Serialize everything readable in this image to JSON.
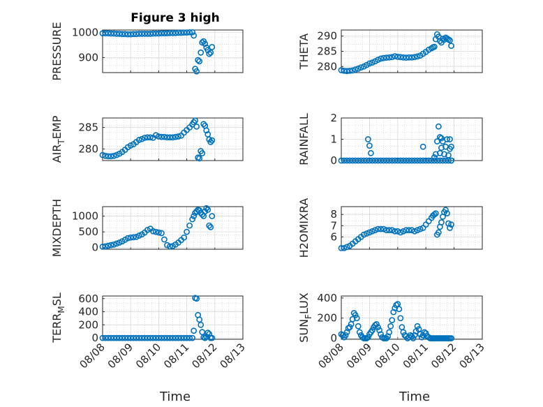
{
  "chart_data": [
    {
      "id": "pressure",
      "type": "scatter",
      "title": "Figure 3 high",
      "ylabel": "PRESSURE",
      "xlim": [
        0,
        5
      ],
      "ylim": [
        840,
        1010
      ],
      "yticks": [
        900,
        1000
      ],
      "ytick_labels": [
        "900",
        "1000"
      ],
      "xticks": [
        0,
        1,
        2,
        3,
        4,
        5
      ],
      "x": [
        0,
        0.1,
        0.2,
        0.3,
        0.4,
        0.5,
        0.6,
        0.7,
        0.8,
        0.9,
        1.0,
        1.1,
        1.2,
        1.3,
        1.4,
        1.5,
        1.6,
        1.7,
        1.8,
        1.9,
        2.0,
        2.1,
        2.2,
        2.3,
        2.4,
        2.5,
        2.6,
        2.7,
        2.8,
        2.9,
        3.0,
        3.1,
        3.2,
        3.25,
        3.3,
        3.35,
        3.4,
        3.45,
        3.5,
        3.55,
        3.6,
        3.65,
        3.7,
        3.75,
        3.8,
        3.85,
        3.9
      ],
      "y": [
        997,
        997,
        997,
        996,
        996,
        995,
        995,
        994,
        994,
        993,
        993,
        994,
        994,
        995,
        995,
        995,
        995,
        995,
        996,
        996,
        996,
        997,
        997,
        997,
        998,
        998,
        998,
        999,
        999,
        1000,
        1000,
        1001,
        1001,
        988,
        855,
        845,
        890,
        885,
        920,
        960,
        965,
        955,
        940,
        930,
        915,
        920,
        942
      ]
    },
    {
      "id": "theta",
      "type": "scatter",
      "ylabel": "THETA",
      "xlim": [
        0,
        5
      ],
      "ylim": [
        278,
        292
      ],
      "yticks": [
        280,
        285,
        290
      ],
      "ytick_labels": [
        "280",
        "285",
        "290"
      ],
      "xticks": [
        0,
        1,
        2,
        3,
        4,
        5
      ],
      "x": [
        0,
        0.1,
        0.2,
        0.3,
        0.4,
        0.5,
        0.6,
        0.7,
        0.8,
        0.9,
        1.0,
        1.1,
        1.2,
        1.3,
        1.4,
        1.5,
        1.6,
        1.7,
        1.8,
        1.9,
        2.0,
        2.1,
        2.2,
        2.3,
        2.4,
        2.5,
        2.6,
        2.7,
        2.8,
        2.9,
        3.0,
        3.1,
        3.2,
        3.25,
        3.3,
        3.35,
        3.4,
        3.45,
        3.5,
        3.55,
        3.6,
        3.65,
        3.7,
        3.75,
        3.8,
        3.85,
        3.9
      ],
      "y": [
        278.8,
        278.6,
        278.5,
        278.6,
        278.7,
        279.0,
        279.3,
        279.7,
        280.0,
        280.5,
        281.0,
        281.3,
        281.7,
        282.2,
        282.6,
        282.8,
        282.9,
        283.0,
        283.1,
        283.4,
        283.2,
        283.1,
        283.0,
        282.9,
        283.0,
        283.0,
        283.1,
        283.3,
        283.6,
        284.2,
        284.8,
        285.5,
        286.0,
        286.3,
        286.5,
        289.0,
        290.6,
        289.8,
        288.4,
        287.9,
        289.1,
        288.8,
        289.5,
        289.2,
        288.9,
        288.6,
        286.8
      ]
    },
    {
      "id": "airtemp",
      "type": "scatter",
      "ylabel": "AIR_TEMP",
      "xlim": [
        0,
        5
      ],
      "ylim": [
        277.3,
        287.2
      ],
      "yticks": [
        280,
        285
      ],
      "ytick_labels": [
        "280",
        "285"
      ],
      "xticks": [
        0,
        1,
        2,
        3,
        4,
        5
      ],
      "x": [
        0,
        0.1,
        0.2,
        0.3,
        0.4,
        0.5,
        0.6,
        0.7,
        0.8,
        0.9,
        1.0,
        1.1,
        1.2,
        1.3,
        1.4,
        1.5,
        1.6,
        1.7,
        1.8,
        1.9,
        2.0,
        2.1,
        2.2,
        2.3,
        2.4,
        2.5,
        2.6,
        2.7,
        2.8,
        2.9,
        3.0,
        3.1,
        3.2,
        3.25,
        3.3,
        3.35,
        3.4,
        3.45,
        3.5,
        3.55,
        3.6,
        3.65,
        3.7,
        3.75,
        3.8,
        3.85,
        3.9
      ],
      "y": [
        278.6,
        278.4,
        278.3,
        278.3,
        278.4,
        278.6,
        278.9,
        279.3,
        279.8,
        280.4,
        280.8,
        281.1,
        281.6,
        282.1,
        282.3,
        282.6,
        282.7,
        282.7,
        282.6,
        283.2,
        282.9,
        282.8,
        282.8,
        282.7,
        282.7,
        282.7,
        282.8,
        282.9,
        283.1,
        283.8,
        284.4,
        285.0,
        285.7,
        286.2,
        286.6,
        285.2,
        278.0,
        277.8,
        279.5,
        279.0,
        285.8,
        285.4,
        284.3,
        283.4,
        282.2,
        281.6,
        282.0
      ]
    },
    {
      "id": "rainfall",
      "type": "scatter",
      "ylabel": "RAINFALL",
      "xlim": [
        0,
        5
      ],
      "ylim": [
        0,
        2
      ],
      "yticks": [
        0,
        1,
        2
      ],
      "ytick_labels": [
        "0",
        "1",
        "2"
      ],
      "xticks": [
        0,
        1,
        2,
        3,
        4,
        5
      ],
      "x": [
        0,
        0.1,
        0.2,
        0.3,
        0.4,
        0.5,
        0.6,
        0.7,
        0.8,
        0.9,
        1.0,
        1.1,
        1.2,
        1.3,
        1.4,
        1.5,
        1.6,
        1.7,
        1.8,
        1.9,
        2.0,
        2.1,
        2.2,
        2.3,
        2.4,
        2.5,
        2.6,
        2.7,
        2.8,
        2.9,
        3.0,
        3.1,
        3.2,
        3.3,
        3.4,
        3.5,
        3.6,
        3.7,
        3.8,
        3.9,
        0.95,
        1.0,
        1.05,
        2.9,
        3.3,
        3.35,
        3.4,
        3.45,
        3.5,
        3.5,
        3.55,
        3.55,
        3.6,
        3.65,
        3.7,
        3.75,
        3.8,
        3.85,
        3.85,
        3.9,
        3.9
      ],
      "y": [
        0,
        0,
        0,
        0,
        0,
        0,
        0,
        0,
        0,
        0,
        0,
        0,
        0,
        0,
        0,
        0,
        0,
        0,
        0,
        0,
        0,
        0,
        0,
        0,
        0,
        0,
        0,
        0,
        0,
        0,
        0,
        0,
        0,
        0,
        0,
        0,
        0,
        0,
        0,
        0,
        1.0,
        0.7,
        0.35,
        0.65,
        0.15,
        0.3,
        0.9,
        1.6,
        1.1,
        0.35,
        1.05,
        0.6,
        0.9,
        0.3,
        0.65,
        1.0,
        0.25,
        0.55,
        1.0,
        0.65,
        0.0
      ]
    },
    {
      "id": "mixdepth",
      "type": "scatter",
      "ylabel": "MIXDEPTH",
      "xlim": [
        0,
        5
      ],
      "ylim": [
        -50,
        1300
      ],
      "yticks": [
        0,
        500,
        1000
      ],
      "ytick_labels": [
        "0",
        "500",
        "1000"
      ],
      "xticks": [
        0,
        1,
        2,
        3,
        4,
        5
      ],
      "x": [
        0,
        0.1,
        0.2,
        0.3,
        0.4,
        0.5,
        0.6,
        0.7,
        0.8,
        0.9,
        1.0,
        1.1,
        1.2,
        1.3,
        1.4,
        1.5,
        1.6,
        1.7,
        1.8,
        1.9,
        2.0,
        2.1,
        2.2,
        2.3,
        2.4,
        2.5,
        2.6,
        2.7,
        2.8,
        2.9,
        3.0,
        3.1,
        3.2,
        3.25,
        3.3,
        3.35,
        3.4,
        3.45,
        3.5,
        3.55,
        3.6,
        3.65,
        3.7,
        3.75,
        3.8,
        3.85,
        3.9
      ],
      "y": [
        30,
        40,
        60,
        80,
        100,
        130,
        160,
        200,
        250,
        300,
        320,
        330,
        340,
        380,
        420,
        480,
        560,
        600,
        520,
        500,
        480,
        460,
        260,
        80,
        40,
        50,
        100,
        160,
        240,
        320,
        500,
        700,
        900,
        1000,
        1100,
        1150,
        1200,
        1180,
        1100,
        1050,
        1000,
        1150,
        1250,
        1200,
        700,
        650,
        1000
      ]
    },
    {
      "id": "h2omixra",
      "type": "scatter",
      "ylabel": "H2OMIXRA",
      "xlim": [
        0,
        5
      ],
      "ylim": [
        4.9,
        8.7
      ],
      "yticks": [
        6,
        7,
        8
      ],
      "ytick_labels": [
        "6",
        "7",
        "8"
      ],
      "xticks": [
        0,
        1,
        2,
        3,
        4,
        5
      ],
      "x": [
        0,
        0.1,
        0.2,
        0.3,
        0.4,
        0.5,
        0.6,
        0.7,
        0.8,
        0.9,
        1.0,
        1.1,
        1.2,
        1.3,
        1.4,
        1.5,
        1.6,
        1.7,
        1.8,
        1.9,
        2.0,
        2.1,
        2.2,
        2.3,
        2.4,
        2.5,
        2.6,
        2.7,
        2.8,
        2.9,
        3.0,
        3.1,
        3.2,
        3.25,
        3.3,
        3.35,
        3.4,
        3.45,
        3.5,
        3.55,
        3.6,
        3.65,
        3.7,
        3.75,
        3.8,
        3.85,
        3.9
      ],
      "y": [
        5.0,
        5.0,
        5.1,
        5.2,
        5.4,
        5.6,
        5.8,
        6.0,
        6.2,
        6.3,
        6.4,
        6.5,
        6.6,
        6.7,
        6.7,
        6.7,
        6.6,
        6.6,
        6.6,
        6.5,
        6.5,
        6.4,
        6.5,
        6.6,
        6.6,
        6.6,
        6.5,
        6.6,
        6.7,
        6.8,
        7.1,
        7.4,
        7.7,
        7.9,
        8.0,
        8.1,
        6.2,
        6.4,
        6.9,
        7.3,
        7.8,
        8.2,
        8.4,
        8.1,
        7.2,
        6.8,
        7.1
      ]
    },
    {
      "id": "terrmsl",
      "type": "scatter",
      "ylabel": "TERR_MSL",
      "xlim": [
        0,
        5
      ],
      "ylim": [
        -20,
        640
      ],
      "yticks": [
        0,
        200,
        400,
        600
      ],
      "ytick_labels": [
        "0",
        "200",
        "400",
        "600"
      ],
      "xticks": [
        0,
        1,
        2,
        3,
        4,
        5
      ],
      "x": [
        0,
        0.1,
        0.2,
        0.3,
        0.4,
        0.5,
        0.6,
        0.7,
        0.8,
        0.9,
        1.0,
        1.1,
        1.2,
        1.3,
        1.4,
        1.5,
        1.6,
        1.7,
        1.8,
        1.9,
        2.0,
        2.1,
        2.2,
        2.3,
        2.4,
        2.5,
        2.6,
        2.7,
        2.8,
        2.9,
        3.0,
        3.1,
        3.2,
        3.25,
        3.3,
        3.35,
        3.4,
        3.45,
        3.5,
        3.55,
        3.6,
        3.65,
        3.7,
        3.75,
        3.8,
        3.85,
        3.9
      ],
      "y": [
        0,
        0,
        0,
        0,
        0,
        0,
        0,
        0,
        0,
        0,
        0,
        0,
        0,
        0,
        0,
        0,
        0,
        0,
        0,
        0,
        0,
        0,
        0,
        0,
        0,
        0,
        0,
        0,
        0,
        0,
        0,
        0,
        0,
        110,
        610,
        600,
        350,
        280,
        200,
        90,
        10,
        0,
        20,
        80,
        60,
        0,
        0
      ]
    },
    {
      "id": "sunflux",
      "type": "scatter",
      "ylabel": "SUN_FLUX",
      "xlim": [
        0,
        5
      ],
      "ylim": [
        -10,
        420
      ],
      "yticks": [
        0,
        200,
        400
      ],
      "ytick_labels": [
        "0",
        "200",
        "400"
      ],
      "xticks": [
        0,
        1,
        2,
        3,
        4,
        5
      ],
      "x": [
        0,
        0.05,
        0.1,
        0.15,
        0.2,
        0.25,
        0.3,
        0.35,
        0.4,
        0.45,
        0.5,
        0.55,
        0.6,
        0.65,
        0.7,
        0.75,
        0.8,
        0.85,
        0.9,
        0.95,
        1.0,
        1.05,
        1.1,
        1.15,
        1.2,
        1.25,
        1.3,
        1.35,
        1.4,
        1.45,
        1.5,
        1.55,
        1.6,
        1.65,
        1.7,
        1.75,
        1.8,
        1.85,
        1.9,
        1.95,
        2.0,
        2.05,
        2.1,
        2.15,
        2.2,
        2.25,
        2.3,
        2.35,
        2.4,
        2.45,
        2.5,
        2.55,
        2.6,
        2.65,
        2.7,
        2.75,
        2.8,
        2.85,
        2.9,
        2.95,
        3.0,
        3.05,
        3.1,
        3.15,
        3.2,
        3.25,
        3.3,
        3.35,
        3.4,
        3.45,
        3.5,
        3.55,
        3.6,
        3.65,
        3.7,
        3.75,
        3.8,
        3.85,
        3.9
      ],
      "y": [
        40,
        30,
        10,
        30,
        60,
        100,
        110,
        140,
        190,
        250,
        230,
        200,
        120,
        60,
        30,
        10,
        0,
        0,
        0,
        10,
        40,
        60,
        80,
        110,
        130,
        140,
        110,
        80,
        40,
        10,
        0,
        0,
        0,
        20,
        60,
        120,
        180,
        260,
        300,
        330,
        340,
        290,
        200,
        110,
        60,
        30,
        20,
        0,
        10,
        30,
        20,
        0,
        30,
        70,
        120,
        90,
        40,
        10,
        30,
        60,
        50,
        20,
        10,
        0,
        0,
        0,
        0,
        0,
        0,
        0,
        0,
        0,
        0,
        0,
        0,
        0,
        0,
        0,
        0
      ]
    }
  ],
  "xtick_labels": [
    "08/08",
    "08/09",
    "08/10",
    "08/11",
    "08/12",
    "08/13"
  ],
  "xlabel": "Time",
  "colors": {
    "marker": "#0072bd",
    "axis": "#262626"
  }
}
